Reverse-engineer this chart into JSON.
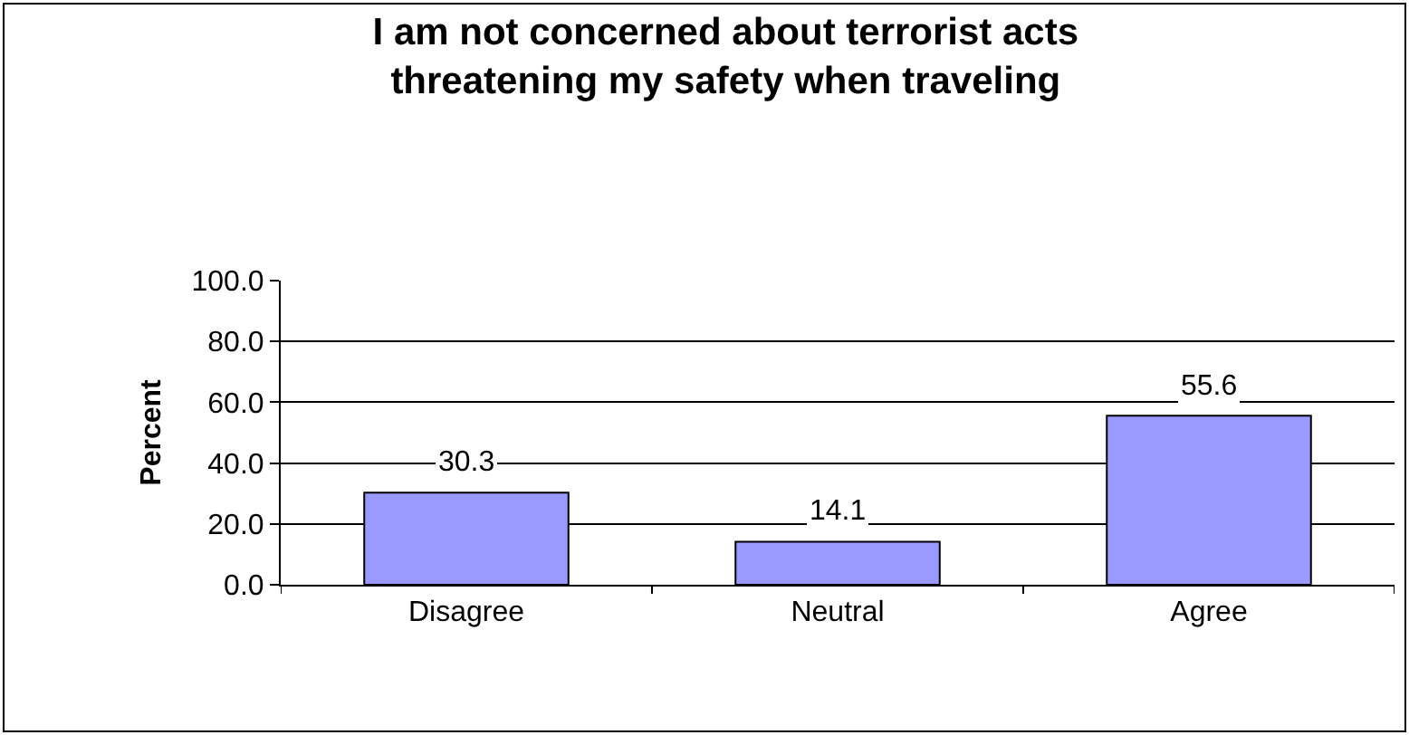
{
  "chart_data": {
    "type": "bar",
    "title": "I am not concerned about terrorist acts threatening my safety when traveling",
    "ylabel": "Percent",
    "categories": [
      "Disagree",
      "Neutral",
      "Agree"
    ],
    "values": [
      30.3,
      14.1,
      55.6
    ],
    "color": "#9999ff",
    "ylim": [
      0,
      100
    ],
    "yticks": [
      {
        "value": 0,
        "label": "0.0"
      },
      {
        "value": 20,
        "label": "20.0"
      },
      {
        "value": 40,
        "label": "40.0"
      },
      {
        "value": 60,
        "label": "60.0"
      },
      {
        "value": 80,
        "label": "80.0"
      },
      {
        "value": 100,
        "label": "100.0"
      }
    ],
    "grid": "y",
    "data_labels": true,
    "legend": false
  }
}
